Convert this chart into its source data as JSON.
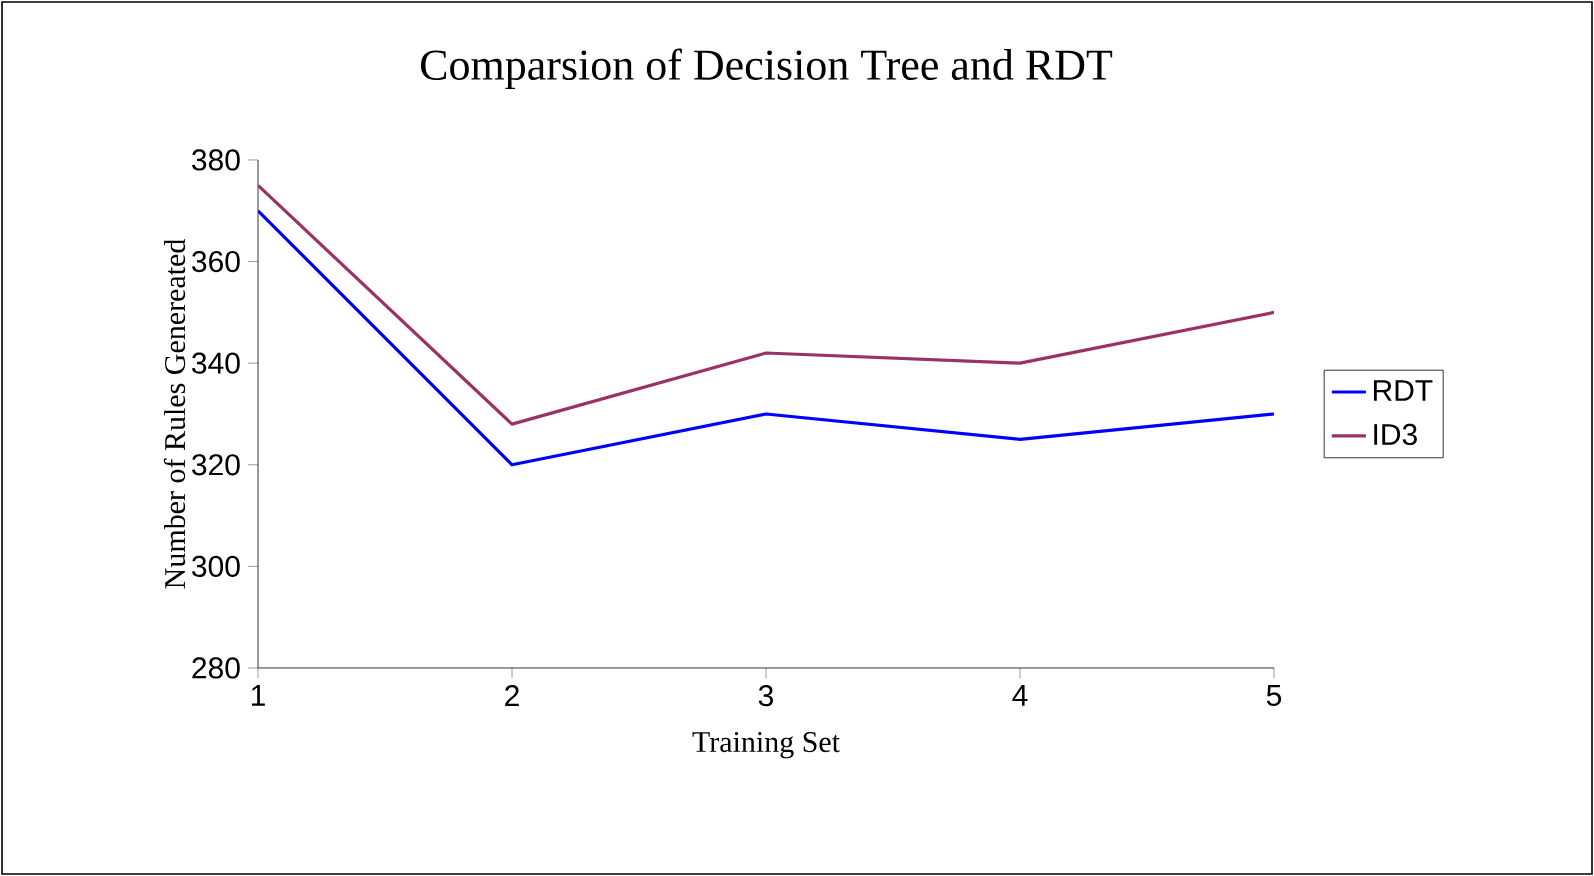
{
  "chart_data": {
    "type": "line",
    "title": "Comparsion of Decision Tree and RDT",
    "xlabel": "Training Set",
    "ylabel": "Number of Rules Genereated",
    "categories": [
      "1",
      "2",
      "3",
      "4",
      "5"
    ],
    "series": [
      {
        "name": "RDT",
        "color": "#0000ff",
        "values": [
          370,
          320,
          330,
          325,
          330
        ]
      },
      {
        "name": "ID3",
        "color": "#993366",
        "values": [
          375,
          328,
          342,
          340,
          350
        ]
      }
    ],
    "ylim": [
      280,
      380
    ],
    "yticks": [
      280,
      300,
      320,
      340,
      360,
      380
    ],
    "grid": false,
    "legend": "right",
    "marker": "none",
    "line_style": "solid"
  }
}
